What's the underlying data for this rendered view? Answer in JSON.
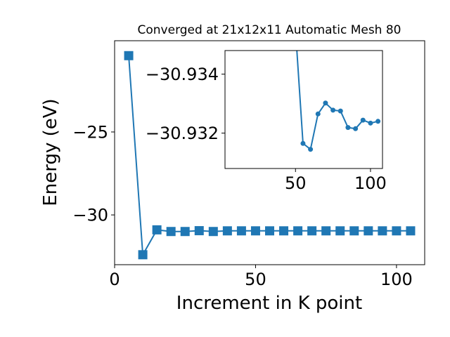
{
  "chart_data": [
    {
      "id": "main",
      "type": "line",
      "title": "Converged at 21x12x11 Automatic Mesh 80",
      "xlabel": "Increment in K point",
      "ylabel": "Energy (eV)",
      "xlim": [
        0,
        110
      ],
      "ylim": [
        -33,
        -19.5
      ],
      "xticks": [
        0,
        50,
        100
      ],
      "yticks": [
        -25,
        -30
      ],
      "xtick_labels": [
        "0",
        "50",
        "100"
      ],
      "ytick_labels": [
        "−25",
        "−30"
      ],
      "marker": "square",
      "color": "#1f77b4",
      "series": [
        {
          "x": [
            5,
            10,
            15,
            20,
            25,
            30,
            35,
            40,
            45,
            50,
            55,
            60,
            65,
            70,
            75,
            80,
            85,
            90,
            95,
            100,
            105
          ],
          "y": [
            -20.4,
            -32.4,
            -30.9,
            -31.0,
            -31.0,
            -30.95,
            -31.0,
            -30.96,
            -30.96,
            -30.96,
            -30.96,
            -30.96,
            -30.96,
            -30.96,
            -30.96,
            -30.96,
            -30.96,
            -30.96,
            -30.96,
            -30.96,
            -30.96
          ]
        }
      ]
    },
    {
      "id": "inset",
      "type": "line",
      "xlim": [
        3,
        108
      ],
      "ylim": [
        -30.9308,
        -30.9348
      ],
      "xticks": [
        50,
        100
      ],
      "yticks": [
        -30.934,
        -30.932
      ],
      "xtick_labels": [
        "50",
        "100"
      ],
      "ytick_labels": [
        "−30.934",
        "−30.932"
      ],
      "marker": "circle",
      "color": "#1f77b4",
      "series": [
        {
          "x": [
            50,
            55,
            60,
            65,
            70,
            75,
            80,
            85,
            90,
            95,
            100,
            105
          ],
          "y": [
            -30.9355,
            -30.93165,
            -30.93145,
            -30.93265,
            -30.93302,
            -30.93278,
            -30.93275,
            -30.93219,
            -30.93215,
            -30.93244,
            -30.93234,
            -30.9324
          ]
        }
      ]
    }
  ]
}
